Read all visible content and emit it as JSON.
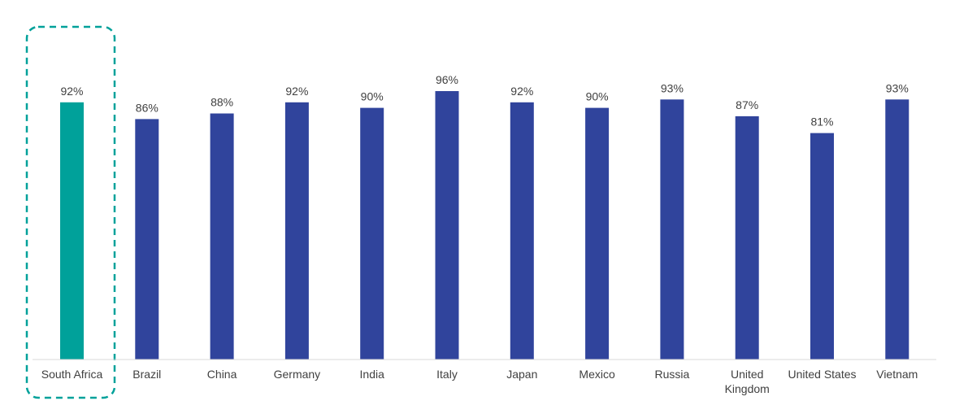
{
  "chart_data": {
    "type": "bar",
    "title": "",
    "xlabel": "",
    "ylabel": "",
    "ylim": [
      0,
      100
    ],
    "value_suffix": "%",
    "grid": false,
    "legend": "none",
    "highlighted_category": "South Africa",
    "categories": [
      {
        "label": "South Africa",
        "lines": [
          "South Africa"
        ]
      },
      {
        "label": "Brazil",
        "lines": [
          "Brazil"
        ]
      },
      {
        "label": "China",
        "lines": [
          "China"
        ]
      },
      {
        "label": "Germany",
        "lines": [
          "Germany"
        ]
      },
      {
        "label": "India",
        "lines": [
          "India"
        ]
      },
      {
        "label": "Italy",
        "lines": [
          "Italy"
        ]
      },
      {
        "label": "Japan",
        "lines": [
          "Japan"
        ]
      },
      {
        "label": "Mexico",
        "lines": [
          "Mexico"
        ]
      },
      {
        "label": "Russia",
        "lines": [
          "Russia"
        ]
      },
      {
        "label": "United Kingdom",
        "lines": [
          "United",
          "Kingdom"
        ]
      },
      {
        "label": "United States",
        "lines": [
          "United States"
        ]
      },
      {
        "label": "Vietnam",
        "lines": [
          "Vietnam"
        ]
      }
    ],
    "values": [
      92,
      86,
      88,
      92,
      90,
      96,
      92,
      90,
      93,
      87,
      81,
      93
    ],
    "value_labels": [
      "92%",
      "86%",
      "88%",
      "92%",
      "90%",
      "96%",
      "92%",
      "90%",
      "93%",
      "87%",
      "81%",
      "93%"
    ],
    "colors": {
      "default_bar": "#30449C",
      "highlight_bar": "#00A19A",
      "highlight_outline": "#00A19A",
      "axis": "#D9D9D9",
      "text": "#404040"
    }
  }
}
